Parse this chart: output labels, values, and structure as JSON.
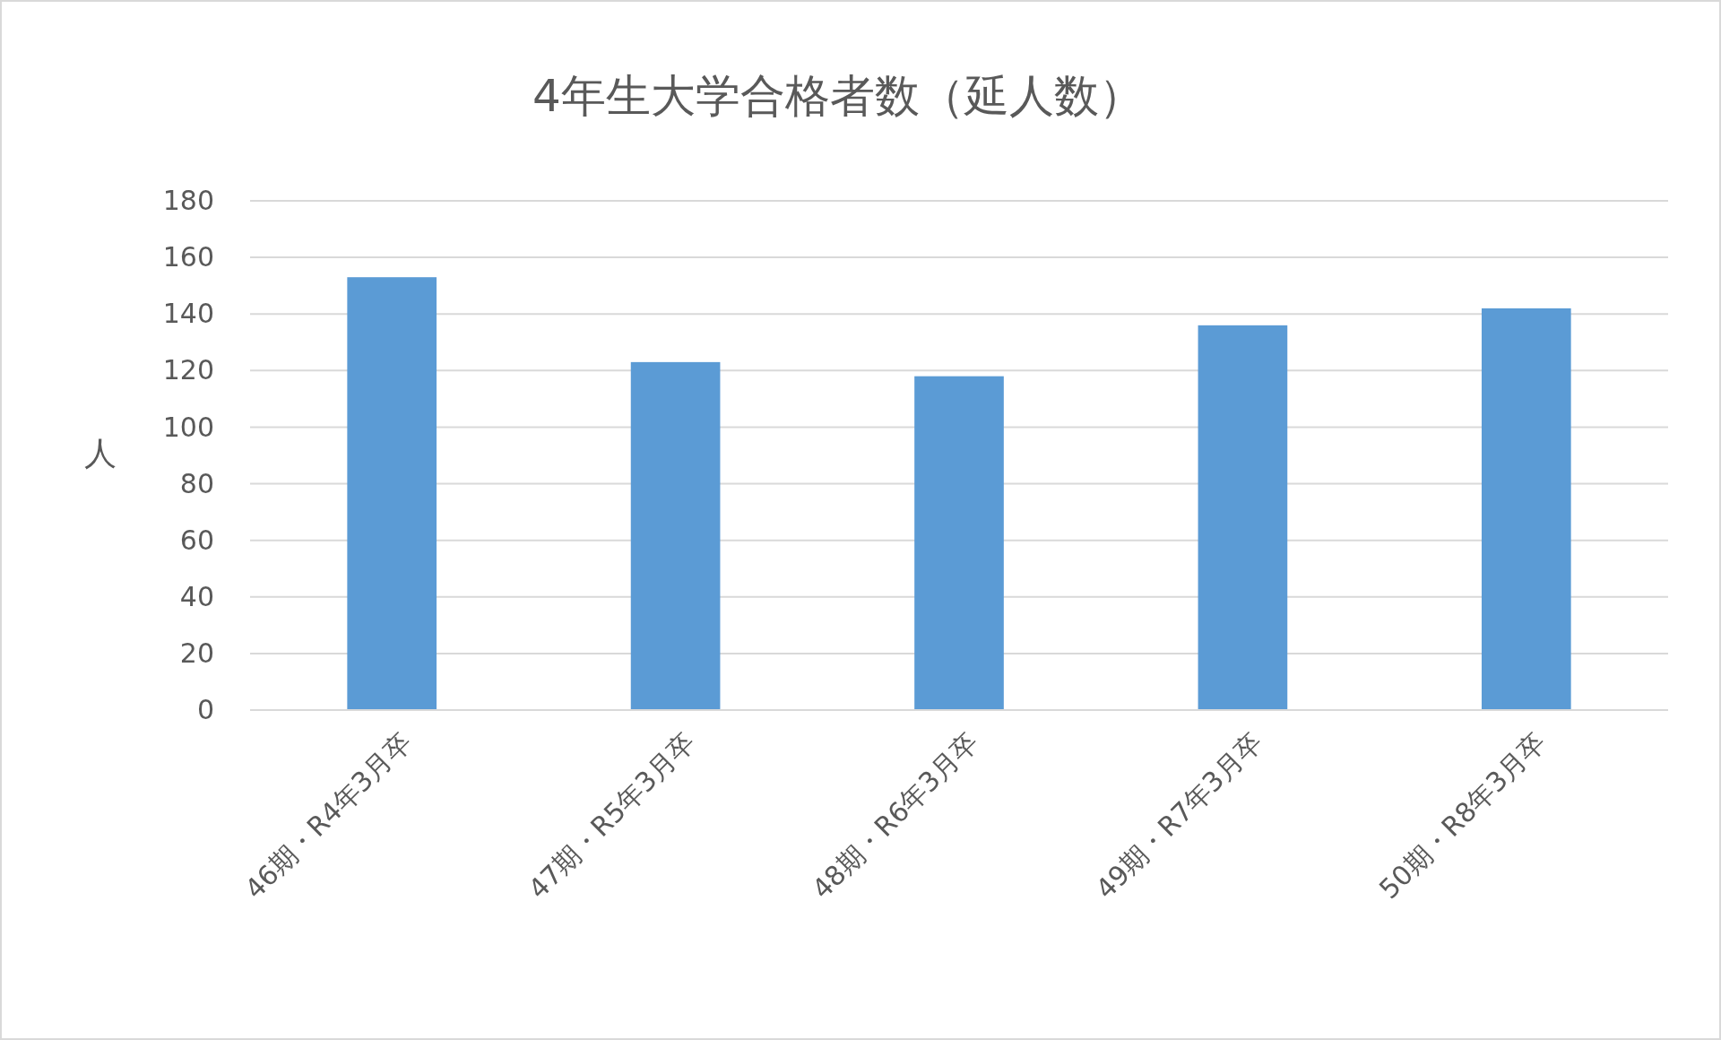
{
  "chart_data": {
    "type": "bar",
    "title": "4年生大学合格者数（延人数）",
    "ylabel": "人",
    "categories": [
      "46期・R4年3月卒",
      "47期・R5年3月卒",
      "48期・R6年3月卒",
      "49期・R7年3月卒",
      "50期・R8年3月卒"
    ],
    "values": [
      153,
      123,
      118,
      136,
      142
    ],
    "color": "#5b9bd5",
    "ylim": [
      0,
      180
    ],
    "yticks": [
      0,
      20,
      40,
      60,
      80,
      100,
      120,
      140,
      160,
      180
    ],
    "grid": "y"
  }
}
